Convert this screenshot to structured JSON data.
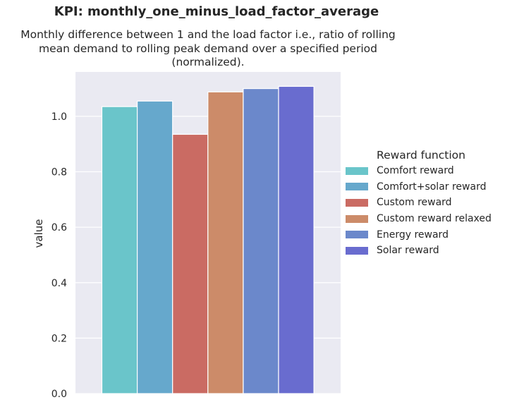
{
  "title": "KPI: monthly_one_minus_load_factor_average",
  "subtitle_lines": [
    "Monthly difference between 1 and the load factor i.e., ratio of rolling",
    "mean demand to rolling peak demand over a specified period",
    "(normalized)."
  ],
  "legend": {
    "title": "Reward function"
  },
  "chart_data": {
    "type": "bar",
    "title": "KPI: monthly_one_minus_load_factor_average",
    "subtitle": "Monthly difference between 1 and the load factor i.e., ratio of rolling mean demand to rolling peak demand over a specified period (normalized).",
    "xlabel": "",
    "ylabel": "value",
    "ylim": [
      0,
      1.16
    ],
    "yticks": [
      0.0,
      0.2,
      0.4,
      0.6,
      0.8,
      1.0
    ],
    "ytick_labels": [
      "0.0",
      "0.2",
      "0.4",
      "0.6",
      "0.8",
      "1.0"
    ],
    "grid": true,
    "legend_title": "Reward function",
    "legend_position": "right",
    "series": [
      {
        "name": "Comfort reward",
        "value": 1.035,
        "color": "#6ac5ca"
      },
      {
        "name": "Comfort+solar reward",
        "value": 1.055,
        "color": "#66a8cc"
      },
      {
        "name": "Custom reward",
        "value": 0.935,
        "color": "#ca6b63"
      },
      {
        "name": "Custom reward relaxed",
        "value": 1.088,
        "color": "#cc8b69"
      },
      {
        "name": "Energy reward",
        "value": 1.1,
        "color": "#6b88cb"
      },
      {
        "name": "Solar reward",
        "value": 1.108,
        "color": "#696ccf"
      }
    ]
  }
}
